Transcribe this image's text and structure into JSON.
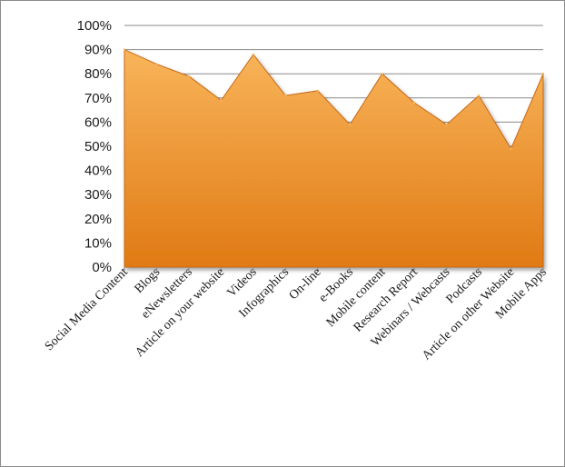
{
  "chart_data": {
    "type": "area",
    "title": "",
    "xlabel": "",
    "ylabel": "",
    "ylim": [
      0,
      100
    ],
    "y_tick_labels": [
      "0%",
      "10%",
      "20%",
      "30%",
      "40%",
      "50%",
      "60%",
      "70%",
      "80%",
      "90%",
      "100%"
    ],
    "grid": true,
    "categories": [
      "Social Media Content",
      "Blogs",
      "eNewsletters",
      "Article on your website",
      "Videos",
      "Infographics",
      "On-line",
      "e-Books",
      "Mobile content",
      "Research Report",
      "Webinars / Webcasts",
      "Podcasts",
      "Article on other Website",
      "Mobile Apps"
    ],
    "series": [
      {
        "values": [
          90,
          84,
          79,
          69,
          88,
          71,
          73,
          59,
          80,
          68,
          59,
          71,
          49,
          80
        ]
      }
    ],
    "colors": {
      "fill_top": "#f8b45a",
      "fill_bottom": "#e07a14",
      "edge": "#c86a18"
    }
  }
}
